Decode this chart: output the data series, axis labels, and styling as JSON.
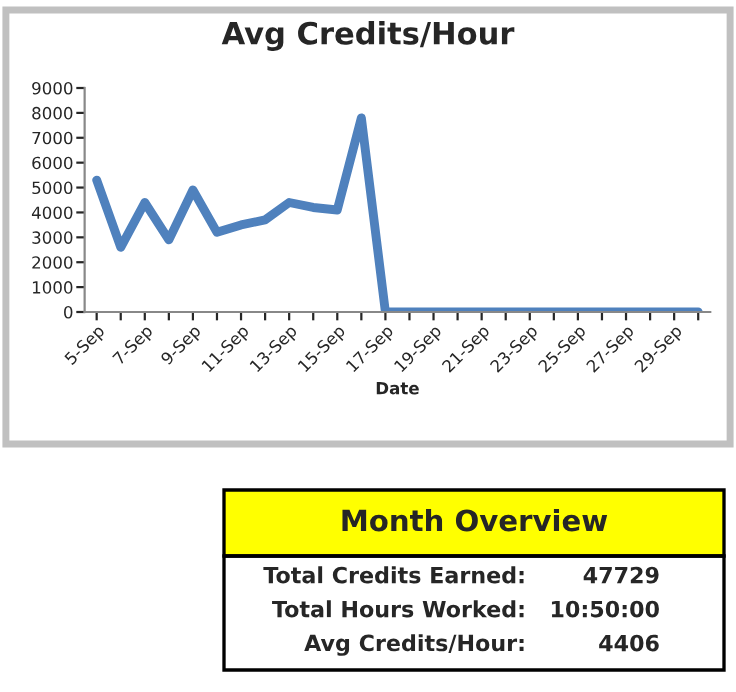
{
  "chart_data": {
    "type": "line",
    "title": "Avg Credits/Hour",
    "xlabel": "Date",
    "categories": [
      "5-Sep",
      null,
      "7-Sep",
      null,
      "9-Sep",
      null,
      "11-Sep",
      null,
      "13-Sep",
      null,
      "15-Sep",
      null,
      "17-Sep",
      null,
      "19-Sep",
      null,
      "21-Sep",
      null,
      "23-Sep",
      null,
      "25-Sep",
      null,
      "27-Sep",
      null,
      "29-Sep",
      null
    ],
    "series": [
      {
        "color": "#4f81bd",
        "values": [
          5300,
          2600,
          4400,
          2900,
          4900,
          3200,
          3500,
          3700,
          4400,
          4200,
          4100,
          7800,
          0,
          0,
          0,
          0,
          0,
          0,
          0,
          0,
          0,
          0,
          0,
          0,
          0,
          0
        ]
      }
    ],
    "ylim": [
      0,
      9000
    ],
    "yticks": [
      0,
      1000,
      2000,
      3000,
      4000,
      5000,
      6000,
      7000,
      8000,
      9000
    ],
    "grid": false,
    "legend": false,
    "marker": "none",
    "line_style": "solid",
    "annotations": [
      "Month Overview",
      "Total Credits Earned:",
      "47729",
      "Total Hours Worked:",
      "10:50:00",
      "Avg Credits/Hour:",
      "4406"
    ]
  }
}
